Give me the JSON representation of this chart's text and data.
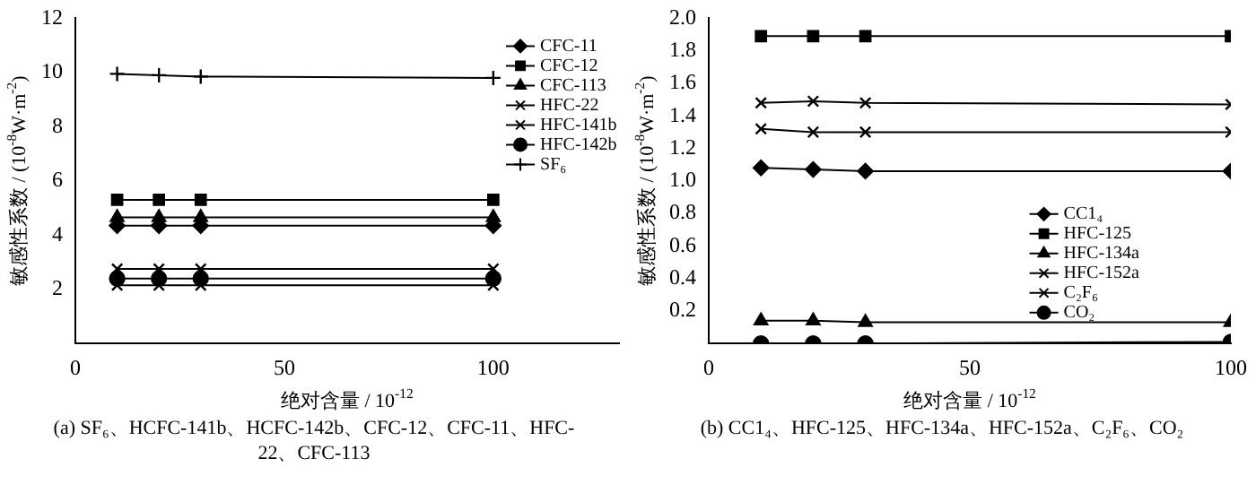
{
  "chart_data": [
    {
      "type": "line",
      "xlabel": "绝对含量 / 10$^{-12}$",
      "ylabel": "敏感性系数 / (10$^{-8}$W·m$^{-2}$)",
      "x": [
        10,
        20,
        30,
        100
      ],
      "xlim": [
        0,
        130
      ],
      "xticks": [
        0,
        50,
        100
      ],
      "ylim": [
        0,
        12
      ],
      "yticks": [
        2,
        4,
        6,
        8,
        10,
        12
      ],
      "grid": false,
      "legend": "top right",
      "annotations": [
        "(a) SF₆、HCFC-141b、HCFC-142b、CFC-12、CFC-11、HFC-22、CFC-113"
      ],
      "series": [
        {
          "name": "CFC-11",
          "color": "#000000",
          "marker": "diamond",
          "values": [
            4.35,
            4.35,
            4.35,
            4.35
          ]
        },
        {
          "name": "CFC-12",
          "color": "#000000",
          "marker": "square",
          "values": [
            5.3,
            5.3,
            5.3,
            5.3
          ]
        },
        {
          "name": "CFC-113",
          "color": "#000000",
          "marker": "triangle",
          "values": [
            4.65,
            4.65,
            4.65,
            4.65
          ]
        },
        {
          "name": "HFC-22",
          "color": "#000000",
          "marker": "cross",
          "values": [
            2.75,
            2.75,
            2.75,
            2.75
          ]
        },
        {
          "name": "HFC-141b",
          "color": "#000000",
          "marker": "cross",
          "values": [
            2.15,
            2.15,
            2.15,
            2.15
          ]
        },
        {
          "name": "HFC-142b",
          "color": "#000000",
          "marker": "circle",
          "values": [
            2.4,
            2.4,
            2.4,
            2.4
          ]
        },
        {
          "name": "SF₆",
          "color": "#000000",
          "marker": "plus",
          "values": [
            9.95,
            9.9,
            9.85,
            9.8
          ]
        }
      ]
    },
    {
      "type": "line",
      "xlabel": "绝对含量 / 10$^{-12}$",
      "ylabel": "敏感性系数 / (10$^{-8}$W·m$^{-2}$)",
      "x": [
        10,
        20,
        30,
        100
      ],
      "xlim": [
        0,
        100
      ],
      "xticks": [
        0,
        50,
        100
      ],
      "ylim": [
        0,
        2
      ],
      "yticks": [
        0.2,
        0.4,
        0.6,
        0.8,
        {
          "value": 1,
          "label": "1.0"
        },
        1.2,
        1.4,
        1.6,
        1.8,
        {
          "value": 2,
          "label": "2.0"
        }
      ],
      "grid": false,
      "legend": "right",
      "annotations": [
        "(b) CC1₄、HFC-125、HFC-134a、HFC-152a、C₂F₆、CO₂"
      ],
      "series": [
        {
          "name": "CC1₄",
          "color": "#000000",
          "marker": "diamond",
          "values": [
            1.08,
            1.07,
            1.06,
            1.06
          ]
        },
        {
          "name": "HFC-125",
          "color": "#000000",
          "marker": "square",
          "values": [
            1.89,
            1.89,
            1.89,
            1.89
          ]
        },
        {
          "name": "HFC-134a",
          "color": "#000000",
          "marker": "triangle",
          "values": [
            0.14,
            0.14,
            0.13,
            0.13
          ]
        },
        {
          "name": "HFC-152a",
          "color": "#000000",
          "marker": "cross",
          "values": [
            1.48,
            1.49,
            1.48,
            1.47
          ]
        },
        {
          "name": "C₂F₆",
          "color": "#000000",
          "marker": "cross",
          "values": [
            1.32,
            1.3,
            1.3,
            1.3
          ]
        },
        {
          "name": "CO₂",
          "color": "#000000",
          "marker": "circle",
          "values": [
            0,
            0,
            0,
            0.01
          ]
        }
      ]
    }
  ]
}
